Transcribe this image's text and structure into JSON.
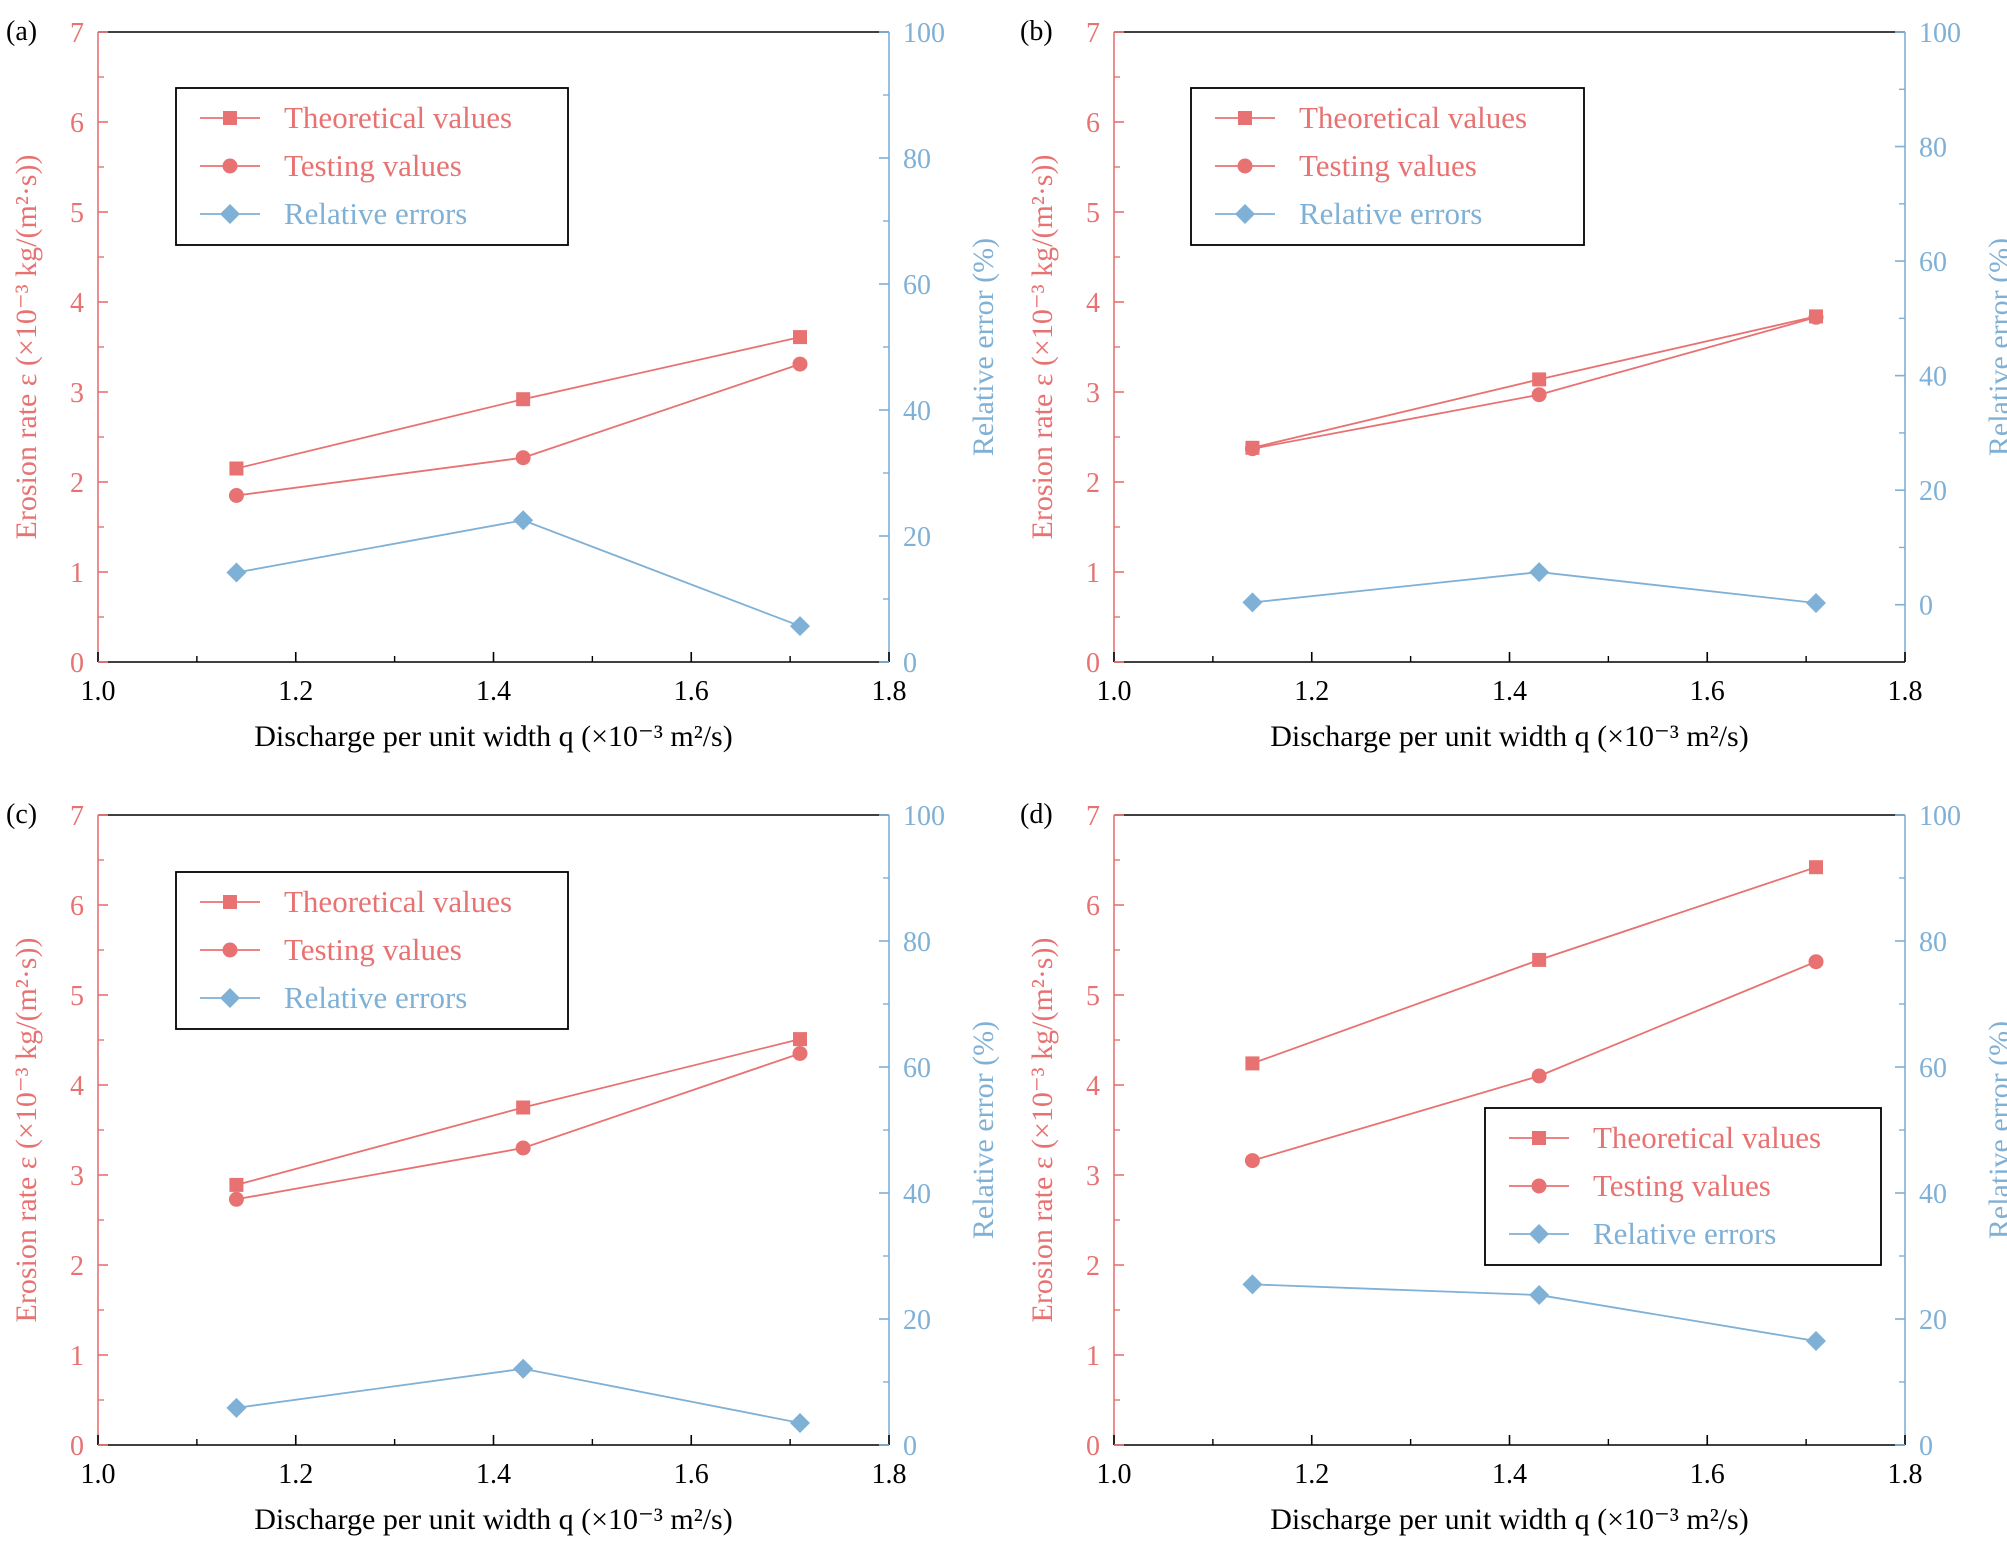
{
  "colors": {
    "left": "#e87272",
    "right": "#7fb0d6",
    "axis_black": "#000000"
  },
  "axes_text": {
    "xlabel": "Discharge per unit width q (×10⁻³ m²/s)",
    "ylabel_left": "Erosion rate ε (×10⁻³ kg/(m²·s))",
    "ylabel_right": "Relative error (%)"
  },
  "legend": {
    "theoretical": "Theoretical values",
    "testing": "Testing values",
    "errors": "Relative errors"
  },
  "chart_data": [
    {
      "panel": "(a)",
      "type": "line",
      "x": [
        1.14,
        1.43,
        1.71
      ],
      "xlim": [
        1.0,
        1.8
      ],
      "xticks": [
        "1.0",
        "1.2",
        "1.4",
        "1.6",
        "1.8"
      ],
      "ylim_left": [
        0,
        7
      ],
      "yticks_left": [
        "0",
        "1",
        "2",
        "3",
        "4",
        "5",
        "6",
        "7"
      ],
      "ylim_right": [
        0,
        100
      ],
      "yticks_right": [
        "0",
        "20",
        "40",
        "60",
        "80",
        "100"
      ],
      "series": [
        {
          "name": "Theoretical values",
          "axis": "left",
          "marker": "square",
          "values": [
            2.15,
            2.92,
            3.61
          ]
        },
        {
          "name": "Testing values",
          "axis": "left",
          "marker": "circle",
          "values": [
            1.85,
            2.27,
            3.31
          ]
        },
        {
          "name": "Relative errors",
          "axis": "right",
          "marker": "diamond",
          "values": [
            14.2,
            22.5,
            5.7
          ]
        }
      ],
      "legend_position": "top-left"
    },
    {
      "panel": "(b)",
      "type": "line",
      "x": [
        1.14,
        1.43,
        1.71
      ],
      "xlim": [
        1.0,
        1.8
      ],
      "xticks": [
        "1.0",
        "1.2",
        "1.4",
        "1.6",
        "1.8"
      ],
      "ylim_left": [
        0,
        7
      ],
      "yticks_left": [
        "0",
        "1",
        "2",
        "3",
        "4",
        "5",
        "6",
        "7"
      ],
      "ylim_right": [
        -10,
        100
      ],
      "yticks_right": [
        "0",
        "20",
        "40",
        "60",
        "80",
        "100"
      ],
      "series": [
        {
          "name": "Theoretical values",
          "axis": "left",
          "marker": "square",
          "values": [
            2.38,
            3.14,
            3.84
          ]
        },
        {
          "name": "Testing values",
          "axis": "left",
          "marker": "circle",
          "values": [
            2.37,
            2.97,
            3.83
          ]
        },
        {
          "name": "Relative errors",
          "axis": "right",
          "marker": "diamond",
          "values": [
            0.4,
            5.7,
            0.3
          ]
        }
      ],
      "legend_position": "top-left"
    },
    {
      "panel": "(c)",
      "type": "line",
      "x": [
        1.14,
        1.43,
        1.71
      ],
      "xlim": [
        1.0,
        1.8
      ],
      "xticks": [
        "1.0",
        "1.2",
        "1.4",
        "1.6",
        "1.8"
      ],
      "ylim_left": [
        0,
        7
      ],
      "yticks_left": [
        "0",
        "1",
        "2",
        "3",
        "4",
        "5",
        "6",
        "7"
      ],
      "ylim_right": [
        0,
        100
      ],
      "yticks_right": [
        "0",
        "20",
        "40",
        "60",
        "80",
        "100"
      ],
      "series": [
        {
          "name": "Theoretical values",
          "axis": "left",
          "marker": "square",
          "values": [
            2.89,
            3.75,
            4.51
          ]
        },
        {
          "name": "Testing values",
          "axis": "left",
          "marker": "circle",
          "values": [
            2.73,
            3.3,
            4.35
          ]
        },
        {
          "name": "Relative errors",
          "axis": "right",
          "marker": "diamond",
          "values": [
            5.9,
            12.1,
            3.5
          ]
        }
      ],
      "legend_position": "top-left"
    },
    {
      "panel": "(d)",
      "type": "line",
      "x": [
        1.14,
        1.43,
        1.71
      ],
      "xlim": [
        1.0,
        1.8
      ],
      "xticks": [
        "1.0",
        "1.2",
        "1.4",
        "1.6",
        "1.8"
      ],
      "ylim_left": [
        0,
        7
      ],
      "yticks_left": [
        "0",
        "1",
        "2",
        "3",
        "4",
        "5",
        "6",
        "7"
      ],
      "ylim_right": [
        0,
        100
      ],
      "yticks_right": [
        "0",
        "20",
        "40",
        "60",
        "80",
        "100"
      ],
      "series": [
        {
          "name": "Theoretical values",
          "axis": "left",
          "marker": "square",
          "values": [
            4.24,
            5.39,
            6.42
          ]
        },
        {
          "name": "Testing values",
          "axis": "left",
          "marker": "circle",
          "values": [
            3.16,
            4.1,
            5.37
          ]
        },
        {
          "name": "Relative errors",
          "axis": "right",
          "marker": "diamond",
          "values": [
            25.5,
            23.8,
            16.5
          ]
        }
      ],
      "legend_position": "lower-right"
    }
  ]
}
